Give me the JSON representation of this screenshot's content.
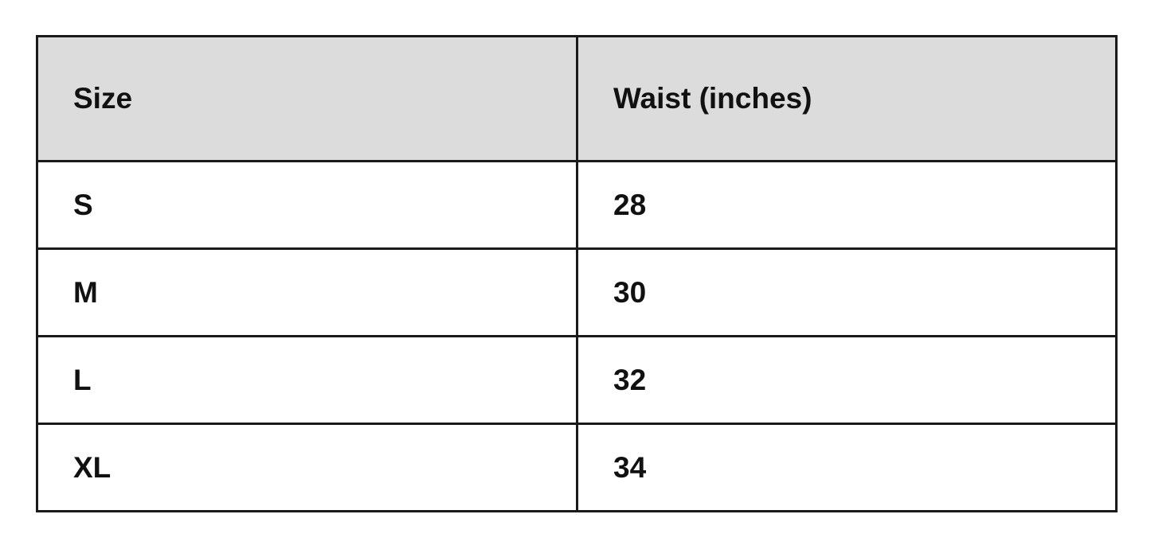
{
  "table": {
    "headers": [
      "Size",
      "Waist (inches)"
    ],
    "rows": [
      [
        "S",
        "28"
      ],
      [
        "M",
        "30"
      ],
      [
        "L",
        "32"
      ],
      [
        "XL",
        "34"
      ]
    ]
  },
  "colors": {
    "header_bg": "#dcdcdc",
    "border": "#1a1a1a"
  }
}
